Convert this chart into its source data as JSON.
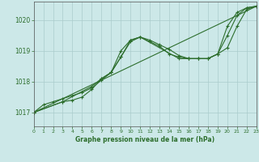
{
  "background_color": "#cce8e8",
  "grid_color": "#aacccc",
  "line_color": "#2d6e2d",
  "marker_color": "#2d6e2d",
  "title": "Graphe pression niveau de la mer (hPa)",
  "xlim": [
    0,
    23
  ],
  "ylim": [
    1016.55,
    1020.6
  ],
  "yticks": [
    1017,
    1018,
    1019,
    1020
  ],
  "xticks": [
    0,
    1,
    2,
    3,
    4,
    5,
    6,
    7,
    8,
    9,
    10,
    11,
    12,
    13,
    14,
    15,
    16,
    17,
    18,
    19,
    20,
    21,
    22,
    23
  ],
  "series": [
    {
      "x": [
        0,
        1,
        2,
        3,
        4,
        5,
        6,
        7,
        8,
        9,
        10,
        11,
        12,
        13,
        14,
        15,
        16,
        17,
        18,
        19,
        20,
        21,
        22,
        23
      ],
      "y": [
        1017.0,
        1017.25,
        1017.35,
        1017.45,
        1017.55,
        1017.65,
        1017.8,
        1018.05,
        1018.3,
        1019.0,
        1019.35,
        1019.45,
        1019.35,
        1019.2,
        1019.05,
        1018.85,
        1018.75,
        1018.75,
        1018.75,
        1018.9,
        1019.5,
        1020.15,
        1020.4,
        1020.45
      ]
    },
    {
      "x": [
        0,
        3,
        4,
        5,
        6,
        7,
        8,
        9,
        10,
        11,
        12,
        13,
        14,
        15,
        16,
        17,
        18,
        19,
        20,
        21,
        22,
        23
      ],
      "y": [
        1017.0,
        1017.35,
        1017.4,
        1017.5,
        1017.75,
        1018.1,
        1018.3,
        1018.8,
        1019.3,
        1019.45,
        1019.3,
        1019.15,
        1018.9,
        1018.8,
        1018.75,
        1018.75,
        1018.75,
        1018.9,
        1019.1,
        1019.8,
        1020.35,
        1020.45
      ]
    },
    {
      "x": [
        0,
        3,
        6,
        7,
        8,
        9,
        10,
        11,
        15,
        16,
        17,
        18,
        19,
        20,
        21,
        22,
        23
      ],
      "y": [
        1017.0,
        1017.35,
        1017.85,
        1018.1,
        1018.3,
        1018.8,
        1019.35,
        1019.45,
        1018.75,
        1018.75,
        1018.75,
        1018.75,
        1018.9,
        1019.8,
        1020.25,
        1020.4,
        1020.45
      ]
    },
    {
      "x": [
        0,
        23
      ],
      "y": [
        1017.0,
        1020.45
      ]
    }
  ]
}
